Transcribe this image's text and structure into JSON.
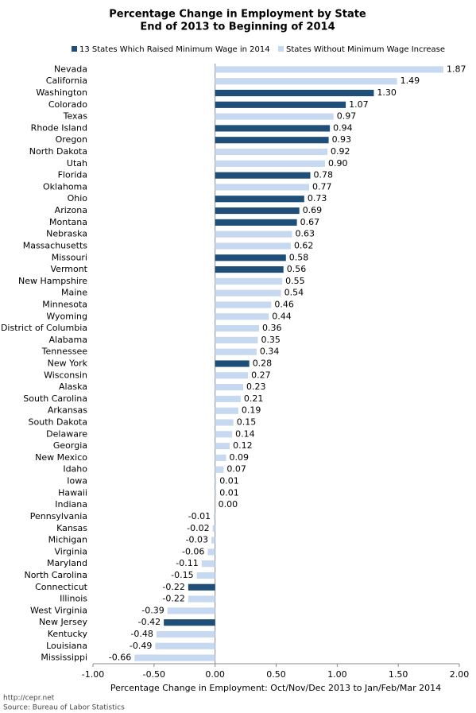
{
  "chart_data": {
    "type": "hbar",
    "title": [
      "Percentage Change in Employment by State",
      "End of 2013 to Beginning of 2014"
    ],
    "x_label": "Percentage Change in Employment: Oct/Nov/Dec 2013 to Jan/Feb/Mar 2014",
    "footer": [
      "http://cepr.net",
      "Source: Bureau of Labor Statistics"
    ],
    "categories": [
      "Nevada",
      "California",
      "Washington",
      "Colorado",
      "Texas",
      "Rhode Island",
      "Oregon",
      "North Dakota",
      "Utah",
      "Florida",
      "Oklahoma",
      "Ohio",
      "Arizona",
      "Montana",
      "Nebraska",
      "Massachusetts",
      "Missouri",
      "Vermont",
      "New Hampshire",
      "Maine",
      "Minnesota",
      "Wyoming",
      "District of Columbia",
      "Alabama",
      "Tennessee",
      "New York",
      "Wisconsin",
      "Alaska",
      "South Carolina",
      "Arkansas",
      "South Dakota",
      "Delaware",
      "Georgia",
      "New Mexico",
      "Idaho",
      "Iowa",
      "Hawaii",
      "Indiana",
      "Pennsylvania",
      "Kansas",
      "Michigan",
      "Virginia",
      "Maryland",
      "North Carolina",
      "Connecticut",
      "Illinois",
      "West Virginia",
      "New Jersey",
      "Kentucky",
      "Louisiana",
      "Mississippi"
    ],
    "series": [
      {
        "name": "13 States Which Raised Minimum Wage in 2014",
        "color": "#1f4e79",
        "values": [
          null,
          null,
          1.3,
          1.07,
          null,
          0.94,
          0.93,
          null,
          null,
          0.78,
          null,
          0.73,
          0.69,
          0.67,
          null,
          null,
          0.58,
          0.56,
          null,
          null,
          null,
          null,
          null,
          null,
          null,
          0.28,
          null,
          null,
          null,
          null,
          null,
          null,
          null,
          null,
          null,
          null,
          null,
          null,
          null,
          null,
          null,
          null,
          null,
          null,
          -0.22,
          null,
          null,
          -0.42,
          null,
          null,
          null
        ],
        "value_labels": [
          null,
          null,
          "1.30",
          "1.07",
          null,
          "0.94",
          "0.93",
          null,
          null,
          "0.78",
          null,
          "0.73",
          "0.69",
          "0.67",
          null,
          null,
          "0.58",
          "0.56",
          null,
          null,
          null,
          null,
          null,
          null,
          null,
          "0.28",
          null,
          null,
          null,
          null,
          null,
          null,
          null,
          null,
          null,
          null,
          null,
          null,
          null,
          null,
          null,
          null,
          null,
          null,
          "-0.22",
          null,
          null,
          "-0.42",
          null,
          null,
          null
        ]
      },
      {
        "name": "States Without Minimum Wage Increase",
        "color": "#c6d9f1",
        "values": [
          1.87,
          1.49,
          null,
          null,
          0.97,
          null,
          null,
          0.92,
          0.9,
          null,
          0.77,
          null,
          null,
          null,
          0.63,
          0.62,
          null,
          null,
          0.55,
          0.54,
          0.46,
          0.44,
          0.36,
          0.35,
          0.34,
          null,
          0.27,
          0.23,
          0.21,
          0.19,
          0.15,
          0.14,
          0.12,
          0.09,
          0.07,
          0.01,
          0.01,
          0.0,
          -0.01,
          -0.02,
          -0.03,
          -0.06,
          -0.11,
          -0.15,
          null,
          -0.22,
          -0.39,
          null,
          -0.48,
          -0.49,
          -0.66
        ],
        "value_labels": [
          "1.87",
          "1.49",
          null,
          null,
          "0.97",
          null,
          null,
          "0.92",
          "0.90",
          null,
          "0.77",
          null,
          null,
          null,
          "0.63",
          "0.62",
          null,
          null,
          "0.55",
          "0.54",
          "0.46",
          "0.44",
          "0.36",
          "0.35",
          "0.34",
          null,
          "0.27",
          "0.23",
          "0.21",
          "0.19",
          "0.15",
          "0.14",
          "0.12",
          "0.09",
          "0.07",
          "0.01",
          "0.01",
          "0.00",
          "-0.01",
          "-0.02",
          "-0.03",
          "-0.06",
          "-0.11",
          "-0.15",
          null,
          "-0.22",
          "-0.39",
          null,
          "-0.48",
          "-0.49",
          "-0.66"
        ]
      }
    ],
    "xlim": [
      -1,
      2
    ],
    "xticks": [
      {
        "value": -1,
        "label": "-1.00"
      },
      {
        "value": -0.5,
        "label": "-0.50"
      },
      {
        "value": 0,
        "label": "0.00"
      },
      {
        "value": 0.5,
        "label": "0.50"
      },
      {
        "value": 1,
        "label": "1.00"
      },
      {
        "value": 1.5,
        "label": "1.50"
      },
      {
        "value": 2,
        "label": "2.00"
      }
    ],
    "grid": false
  }
}
